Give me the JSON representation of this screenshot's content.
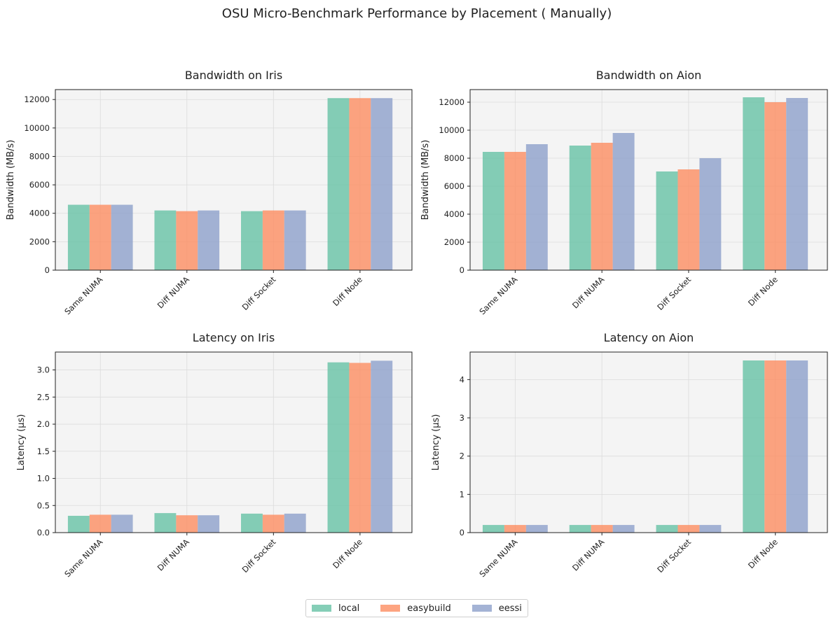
{
  "suptitle": "OSU Micro-Benchmark Performance by Placement ( Manually)",
  "legend": [
    {
      "name": "local",
      "color": "#66c2a5"
    },
    {
      "name": "easybuild",
      "color": "#fc8d62"
    },
    {
      "name": "eessi",
      "color": "#8da0cb"
    }
  ],
  "chart_data": [
    {
      "type": "bar",
      "title": "Bandwidth on Iris",
      "ylabel": "Bandwidth (MB/s)",
      "categories": [
        "Same NUMA",
        "Diff NUMA",
        "Diff Socket",
        "Diff Node"
      ],
      "ylim": [
        0,
        12700
      ],
      "yticks": [
        0,
        2000,
        4000,
        6000,
        8000,
        10000,
        12000
      ],
      "series": [
        {
          "name": "local",
          "values": [
            4600,
            4200,
            4150,
            12100
          ]
        },
        {
          "name": "easybuild",
          "values": [
            4600,
            4150,
            4200,
            12100
          ]
        },
        {
          "name": "eessi",
          "values": [
            4600,
            4200,
            4200,
            12100
          ]
        }
      ]
    },
    {
      "type": "bar",
      "title": "Bandwidth on Aion",
      "ylabel": "Bandwidth (MB/s)",
      "categories": [
        "Same NUMA",
        "Diff NUMA",
        "Diff Socket",
        "Diff Node"
      ],
      "ylim": [
        0,
        12900
      ],
      "yticks": [
        0,
        2000,
        4000,
        6000,
        8000,
        10000,
        12000
      ],
      "series": [
        {
          "name": "local",
          "values": [
            8450,
            8900,
            7050,
            12350
          ]
        },
        {
          "name": "easybuild",
          "values": [
            8450,
            9100,
            7200,
            12000
          ]
        },
        {
          "name": "eessi",
          "values": [
            9000,
            9800,
            8000,
            12300
          ]
        }
      ]
    },
    {
      "type": "bar",
      "title": "Latency on Iris",
      "ylabel": "Latency (µs)",
      "categories": [
        "Same NUMA",
        "Diff NUMA",
        "Diff Socket",
        "Diff Node"
      ],
      "ylim": [
        0,
        3.33
      ],
      "yticks": [
        0.0,
        0.5,
        1.0,
        1.5,
        2.0,
        2.5,
        3.0
      ],
      "tickDecimals": 1,
      "series": [
        {
          "name": "local",
          "values": [
            0.31,
            0.36,
            0.35,
            3.14
          ]
        },
        {
          "name": "easybuild",
          "values": [
            0.33,
            0.32,
            0.33,
            3.13
          ]
        },
        {
          "name": "eessi",
          "values": [
            0.33,
            0.32,
            0.35,
            3.17
          ]
        }
      ]
    },
    {
      "type": "bar",
      "title": "Latency on Aion",
      "ylabel": "Latency (µs)",
      "categories": [
        "Same NUMA",
        "Diff NUMA",
        "Diff Socket",
        "Diff Node"
      ],
      "ylim": [
        0,
        4.72
      ],
      "yticks": [
        0,
        1,
        2,
        3,
        4
      ],
      "series": [
        {
          "name": "local",
          "values": [
            0.2,
            0.2,
            0.2,
            4.5
          ]
        },
        {
          "name": "easybuild",
          "values": [
            0.2,
            0.2,
            0.2,
            4.5
          ]
        },
        {
          "name": "eessi",
          "values": [
            0.2,
            0.2,
            0.2,
            4.5
          ]
        }
      ]
    }
  ]
}
